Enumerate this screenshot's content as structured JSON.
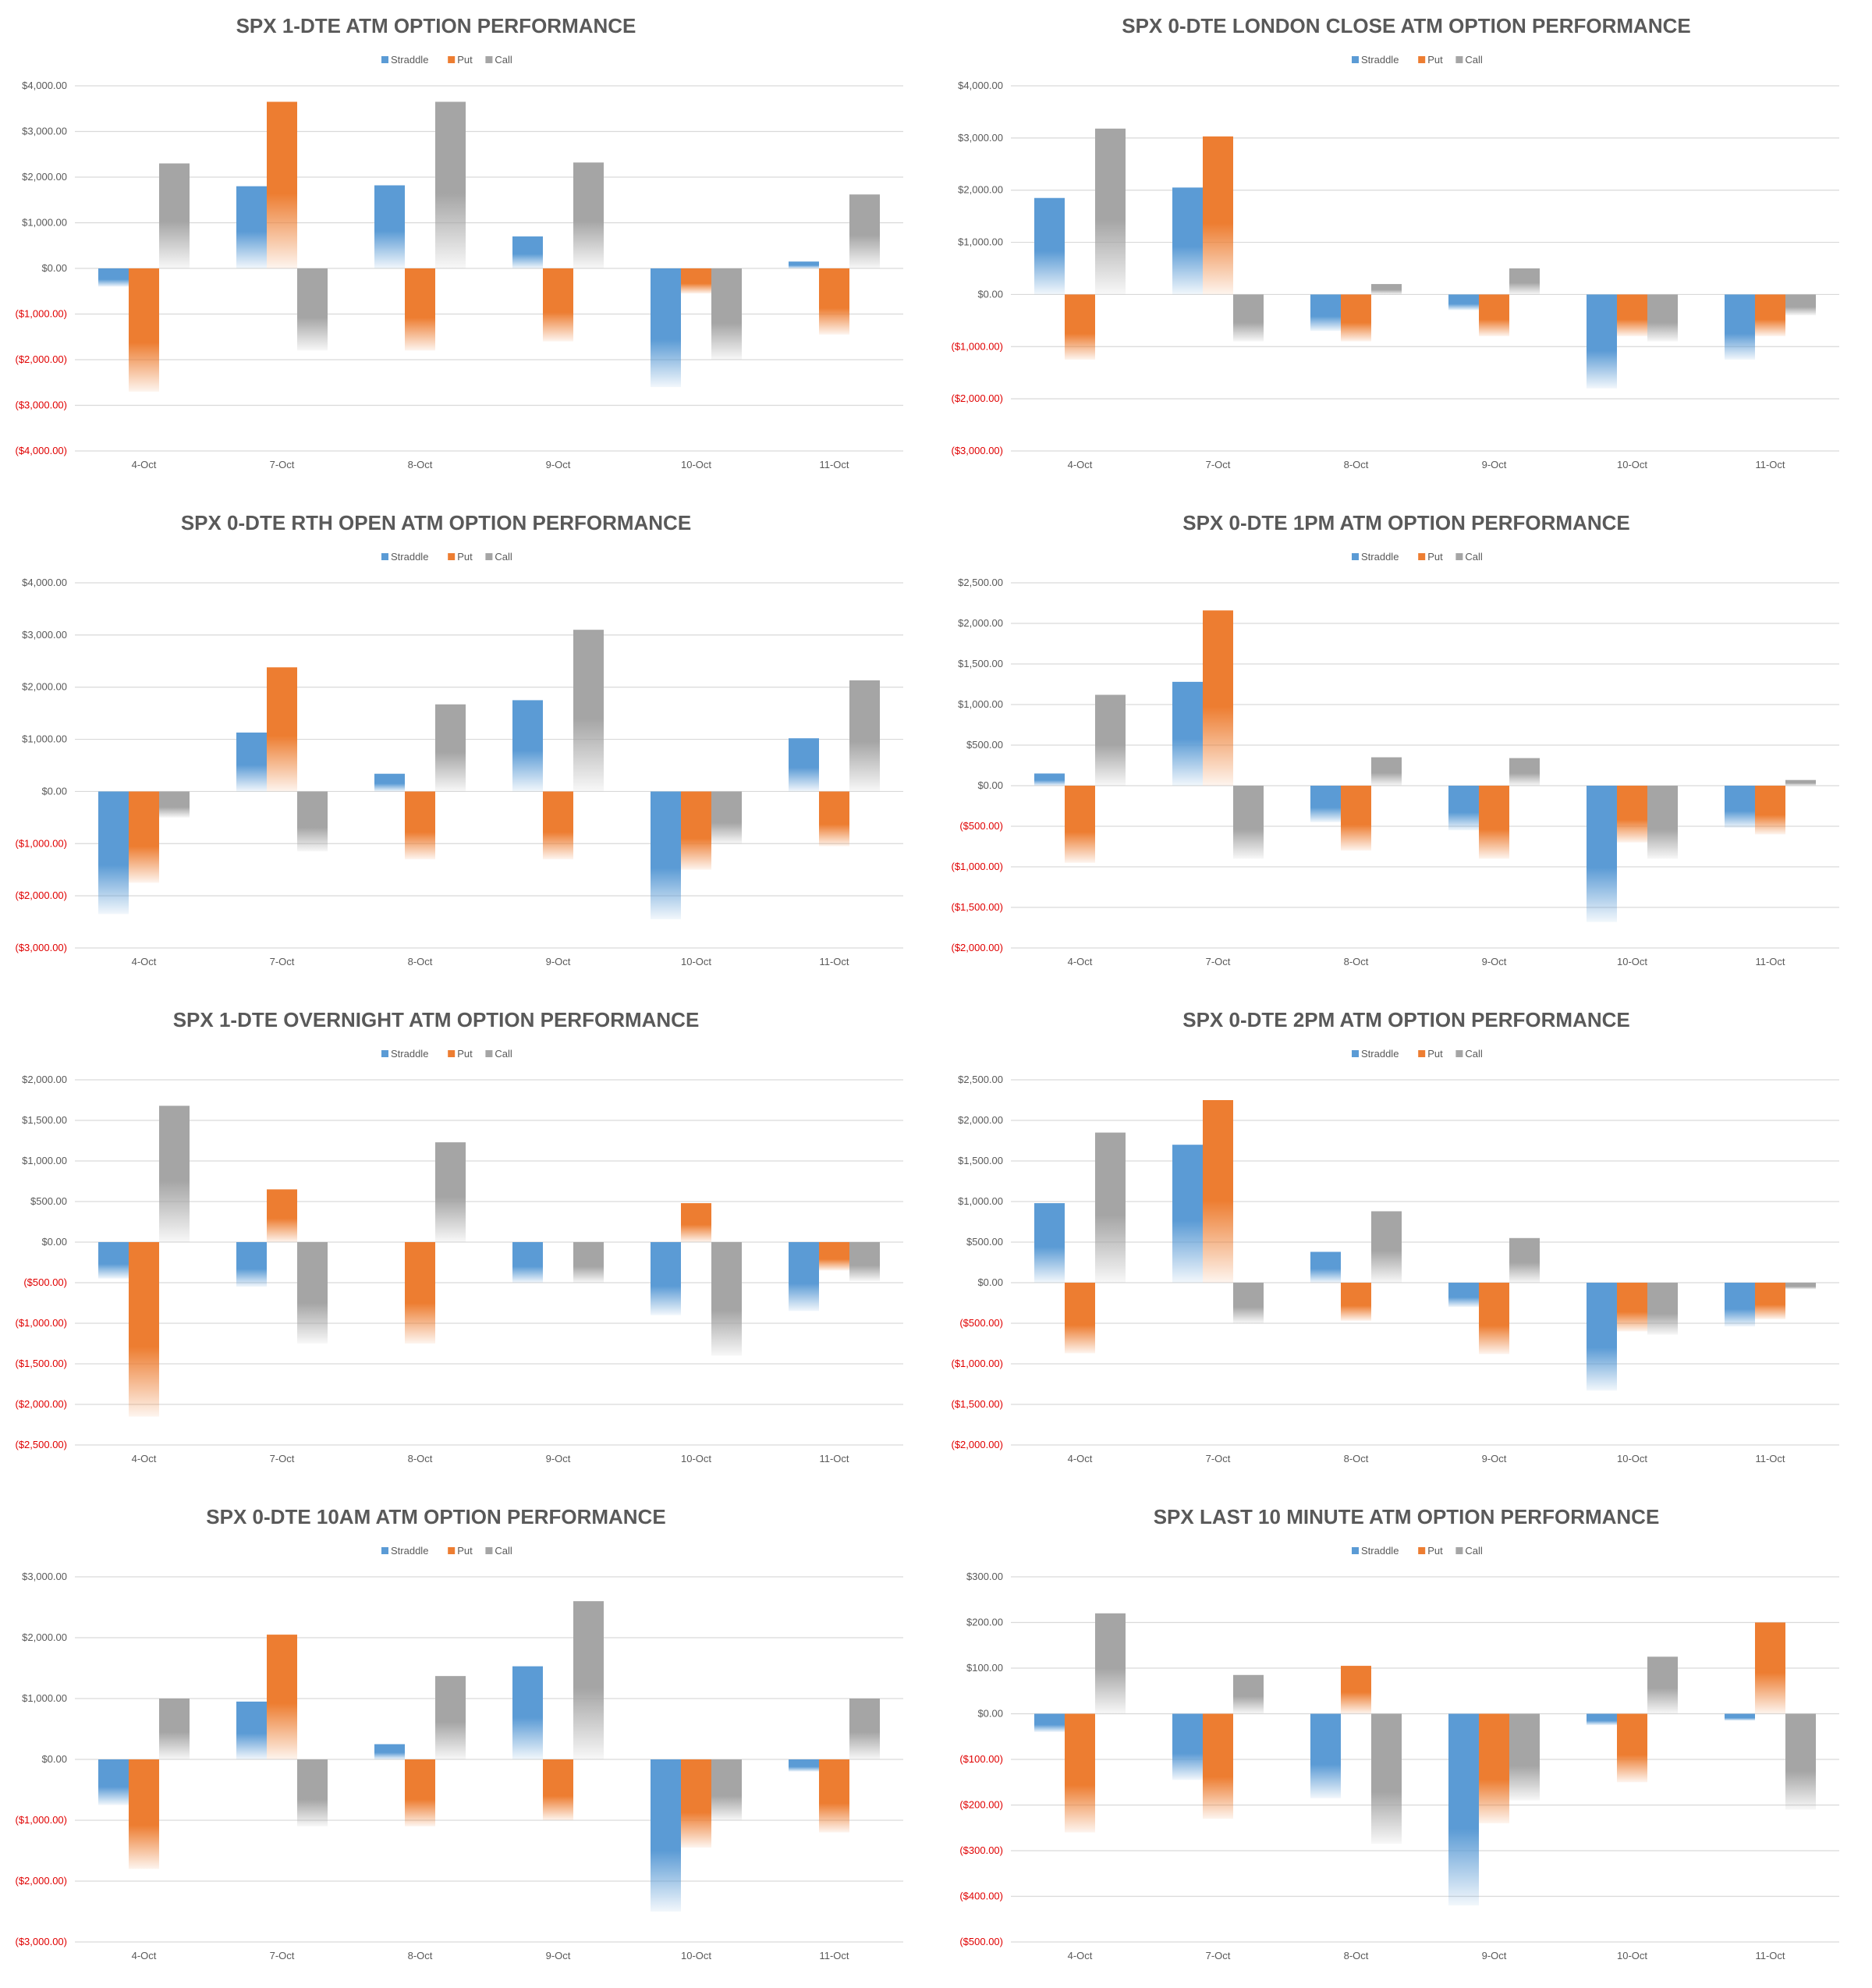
{
  "colors": {
    "straddle": "#5b9bd5",
    "put": "#ed7d31",
    "call": "#a5a5a5",
    "gridline": "#d9d9d9",
    "negative_label": "#e00000",
    "text": "#595959"
  },
  "chart_data": [
    {
      "type": "bar",
      "title": "SPX 1-DTE ATM OPTION PERFORMANCE",
      "legend_position": "top",
      "categories": [
        "4-Oct",
        "7-Oct",
        "8-Oct",
        "9-Oct",
        "10-Oct",
        "11-Oct"
      ],
      "series": [
        {
          "name": "Straddle",
          "values": [
            -400,
            1800,
            1820,
            700,
            -2600,
            150
          ]
        },
        {
          "name": "Put",
          "values": [
            -2700,
            3650,
            -1800,
            -1600,
            -550,
            -1450
          ]
        },
        {
          "name": "Call",
          "values": [
            2300,
            -1800,
            3650,
            2320,
            -2000,
            1620
          ]
        }
      ],
      "ylim": [
        -4000,
        4000
      ],
      "ytick_values": [
        4000,
        3000,
        2000,
        1000,
        0,
        -1000,
        -2000,
        -3000,
        -4000
      ],
      "ytick_labels": [
        "$4,000.00",
        "$3,000.00",
        "$2,000.00",
        "$1,000.00",
        "$0.00",
        "($1,000.00)",
        "($2,000.00)",
        "($3,000.00)",
        "($4,000.00)"
      ],
      "grid": true
    },
    {
      "type": "bar",
      "title": "SPX 0-DTE  LONDON CLOSE ATM OPTION PERFORMANCE",
      "legend_position": "top",
      "categories": [
        "4-Oct",
        "7-Oct",
        "8-Oct",
        "9-Oct",
        "10-Oct",
        "11-Oct"
      ],
      "series": [
        {
          "name": "Straddle",
          "values": [
            1850,
            2050,
            -700,
            -300,
            -1800,
            -1250
          ]
        },
        {
          "name": "Put",
          "values": [
            -1250,
            3030,
            -900,
            -800,
            -800,
            -800
          ]
        },
        {
          "name": "Call",
          "values": [
            3180,
            -900,
            200,
            500,
            -900,
            -400
          ]
        }
      ],
      "ylim": [
        -3000,
        4000
      ],
      "ytick_values": [
        4000,
        3000,
        2000,
        1000,
        0,
        -1000,
        -2000,
        -3000
      ],
      "ytick_labels": [
        "$4,000.00",
        "$3,000.00",
        "$2,000.00",
        "$1,000.00",
        "$0.00",
        "($1,000.00)",
        "($2,000.00)",
        "($3,000.00)"
      ],
      "grid": true
    },
    {
      "type": "bar",
      "title": "SPX 0-DTE RTH OPEN ATM OPTION PERFORMANCE",
      "legend_position": "top",
      "categories": [
        "4-Oct",
        "7-Oct",
        "8-Oct",
        "9-Oct",
        "10-Oct",
        "11-Oct"
      ],
      "series": [
        {
          "name": "Straddle",
          "values": [
            -2350,
            1130,
            340,
            1750,
            -2450,
            1020
          ]
        },
        {
          "name": "Put",
          "values": [
            -1750,
            2380,
            -1300,
            -1300,
            -1500,
            -1050
          ]
        },
        {
          "name": "Call",
          "values": [
            -500,
            -1150,
            1670,
            3100,
            -1000,
            2130
          ]
        }
      ],
      "ylim": [
        -3000,
        4000
      ],
      "ytick_values": [
        4000,
        3000,
        2000,
        1000,
        0,
        -1000,
        -2000,
        -3000
      ],
      "ytick_labels": [
        "$4,000.00",
        "$3,000.00",
        "$2,000.00",
        "$1,000.00",
        "$0.00",
        "($1,000.00)",
        "($2,000.00)",
        "($3,000.00)"
      ],
      "grid": true
    },
    {
      "type": "bar",
      "title": "SPX 0-DTE 1PM ATM OPTION PERFORMANCE",
      "legend_position": "top",
      "categories": [
        "4-Oct",
        "7-Oct",
        "8-Oct",
        "9-Oct",
        "10-Oct",
        "11-Oct"
      ],
      "series": [
        {
          "name": "Straddle",
          "values": [
            150,
            1280,
            -450,
            -550,
            -1680,
            -520
          ]
        },
        {
          "name": "Put",
          "values": [
            -950,
            2160,
            -800,
            -900,
            -700,
            -600
          ]
        },
        {
          "name": "Call",
          "values": [
            1120,
            -900,
            350,
            340,
            -900,
            70
          ]
        }
      ],
      "ylim": [
        -2000,
        2500
      ],
      "ytick_values": [
        2500,
        2000,
        1500,
        1000,
        500,
        0,
        -500,
        -1000,
        -1500,
        -2000
      ],
      "ytick_labels": [
        "$2,500.00",
        "$2,000.00",
        "$1,500.00",
        "$1,000.00",
        "$500.00",
        "$0.00",
        "($500.00)",
        "($1,000.00)",
        "($1,500.00)",
        "($2,000.00)"
      ],
      "grid": true
    },
    {
      "type": "bar",
      "title": "SPX 1-DTE OVERNIGHT ATM OPTION PERFORMANCE",
      "legend_position": "top",
      "categories": [
        "4-Oct",
        "7-Oct",
        "8-Oct",
        "9-Oct",
        "10-Oct",
        "11-Oct"
      ],
      "series": [
        {
          "name": "Straddle",
          "values": [
            -450,
            -550,
            0,
            -500,
            -900,
            -850
          ]
        },
        {
          "name": "Put",
          "values": [
            -2150,
            650,
            -1250,
            0,
            480,
            -350
          ]
        },
        {
          "name": "Call",
          "values": [
            1680,
            -1250,
            1230,
            -500,
            -1400,
            -480
          ]
        }
      ],
      "ylim": [
        -2500,
        2000
      ],
      "ytick_values": [
        2000,
        1500,
        1000,
        500,
        0,
        -500,
        -1000,
        -1500,
        -2000,
        -2500
      ],
      "ytick_labels": [
        "$2,000.00",
        "$1,500.00",
        "$1,000.00",
        "$500.00",
        "$0.00",
        "($500.00)",
        "($1,000.00)",
        "($1,500.00)",
        "($2,000.00)",
        "($2,500.00)"
      ],
      "grid": true
    },
    {
      "type": "bar",
      "title": "SPX 0-DTE 2PM ATM OPTION PERFORMANCE",
      "legend_position": "top",
      "categories": [
        "4-Oct",
        "7-Oct",
        "8-Oct",
        "9-Oct",
        "10-Oct",
        "11-Oct"
      ],
      "series": [
        {
          "name": "Straddle",
          "values": [
            980,
            1700,
            380,
            -300,
            -1330,
            -540
          ]
        },
        {
          "name": "Put",
          "values": [
            -870,
            2250,
            -470,
            -880,
            -600,
            -450
          ]
        },
        {
          "name": "Call",
          "values": [
            1850,
            -500,
            880,
            550,
            -640,
            -80
          ]
        }
      ],
      "ylim": [
        -2000,
        2500
      ],
      "ytick_values": [
        2500,
        2000,
        1500,
        1000,
        500,
        0,
        -500,
        -1000,
        -1500,
        -2000
      ],
      "ytick_labels": [
        "$2,500.00",
        "$2,000.00",
        "$1,500.00",
        "$1,000.00",
        "$500.00",
        "$0.00",
        "($500.00)",
        "($1,000.00)",
        "($1,500.00)",
        "($2,000.00)"
      ],
      "grid": true
    },
    {
      "type": "bar",
      "title": "SPX 0-DTE 10AM ATM OPTION PERFORMANCE",
      "legend_position": "top",
      "categories": [
        "4-Oct",
        "7-Oct",
        "8-Oct",
        "9-Oct",
        "10-Oct",
        "11-Oct"
      ],
      "series": [
        {
          "name": "Straddle",
          "values": [
            -750,
            950,
            250,
            1530,
            -2500,
            -200
          ]
        },
        {
          "name": "Put",
          "values": [
            -1800,
            2050,
            -1100,
            -1000,
            -1450,
            -1200
          ]
        },
        {
          "name": "Call",
          "values": [
            1000,
            -1100,
            1370,
            2600,
            -1000,
            1000
          ]
        }
      ],
      "ylim": [
        -3000,
        3000
      ],
      "ytick_values": [
        3000,
        2000,
        1000,
        0,
        -1000,
        -2000,
        -3000
      ],
      "ytick_labels": [
        "$3,000.00",
        "$2,000.00",
        "$1,000.00",
        "$0.00",
        "($1,000.00)",
        "($2,000.00)",
        "($3,000.00)"
      ],
      "grid": true
    },
    {
      "type": "bar",
      "title": "SPX LAST 10 MINUTE ATM OPTION PERFORMANCE",
      "legend_position": "top",
      "categories": [
        "4-Oct",
        "7-Oct",
        "8-Oct",
        "9-Oct",
        "10-Oct",
        "11-Oct"
      ],
      "series": [
        {
          "name": "Straddle",
          "values": [
            -40,
            -145,
            -185,
            -420,
            -25,
            -15
          ]
        },
        {
          "name": "Put",
          "values": [
            -260,
            -230,
            105,
            -240,
            -150,
            200
          ]
        },
        {
          "name": "Call",
          "values": [
            220,
            85,
            -285,
            -190,
            125,
            -210
          ]
        }
      ],
      "ylim": [
        -500,
        300
      ],
      "ytick_values": [
        300,
        200,
        100,
        0,
        -100,
        -200,
        -300,
        -400,
        -500
      ],
      "ytick_labels": [
        "$300.00",
        "$200.00",
        "$100.00",
        "$0.00",
        "($100.00)",
        "($200.00)",
        "($300.00)",
        "($400.00)",
        "($500.00)"
      ],
      "grid": true
    }
  ]
}
